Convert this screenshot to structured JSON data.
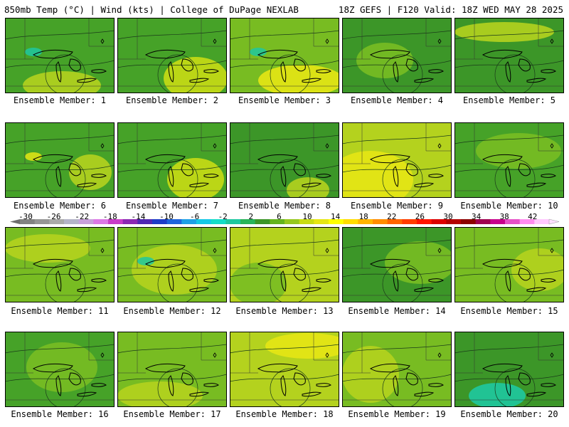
{
  "header": {
    "left": "850mb Temp (°C) | Wind (kts) | College of DuPage NEXLAB",
    "right": "18Z GEFS | F120 Valid: 18Z WED MAY 28 2025"
  },
  "panels": [
    {
      "label": "Ensemble Member: 1"
    },
    {
      "label": "Ensemble Member: 2"
    },
    {
      "label": "Ensemble Member: 3"
    },
    {
      "label": "Ensemble Member: 4"
    },
    {
      "label": "Ensemble Member: 5"
    },
    {
      "label": "Ensemble Member: 6"
    },
    {
      "label": "Ensemble Member: 7"
    },
    {
      "label": "Ensemble Member: 8"
    },
    {
      "label": "Ensemble Member: 9"
    },
    {
      "label": "Ensemble Member: 10"
    },
    {
      "label": "Ensemble Member: 11"
    },
    {
      "label": "Ensemble Member: 12"
    },
    {
      "label": "Ensemble Member: 13"
    },
    {
      "label": "Ensemble Member: 14"
    },
    {
      "label": "Ensemble Member: 15"
    },
    {
      "label": "Ensemble Member: 16"
    },
    {
      "label": "Ensemble Member: 17"
    },
    {
      "label": "Ensemble Member: 18"
    },
    {
      "label": "Ensemble Member: 19"
    },
    {
      "label": "Ensemble Member: 20"
    }
  ],
  "colorbar": {
    "ticks": [
      "-30",
      "-26",
      "-22",
      "-18",
      "-14",
      "-10",
      "-6",
      "-2",
      "2",
      "6",
      "10",
      "14",
      "18",
      "22",
      "26",
      "30",
      "34",
      "38",
      "42"
    ],
    "colors": [
      "#828282",
      "#969696",
      "#aaaaaa",
      "#b4b4c8",
      "#c8a0dc",
      "#dc78e6",
      "#c83cc8",
      "#8c28b4",
      "#5028b4",
      "#1e3cc8",
      "#1e64dc",
      "#1ea0e6",
      "#14c8e6",
      "#14dcc8",
      "#1ec8a0",
      "#28b45a",
      "#3c9628",
      "#64b41e",
      "#96c81e",
      "#c8dc14",
      "#e6e614",
      "#ffff00",
      "#ffdc00",
      "#ffb400",
      "#ff8c00",
      "#ff6400",
      "#ff3c00",
      "#ff1400",
      "#dc0000",
      "#b40000",
      "#8c0000",
      "#a00050",
      "#c8008c",
      "#e650c8",
      "#ff8cf0",
      "#ffc8ff"
    ]
  },
  "palette": {
    "dark_green": "#2e8b24",
    "mid_green": "#46a228",
    "light_green": "#78bc22",
    "yellow_green": "#b4d21e",
    "yellow": "#e6e614",
    "teal": "#1ec8a0"
  }
}
